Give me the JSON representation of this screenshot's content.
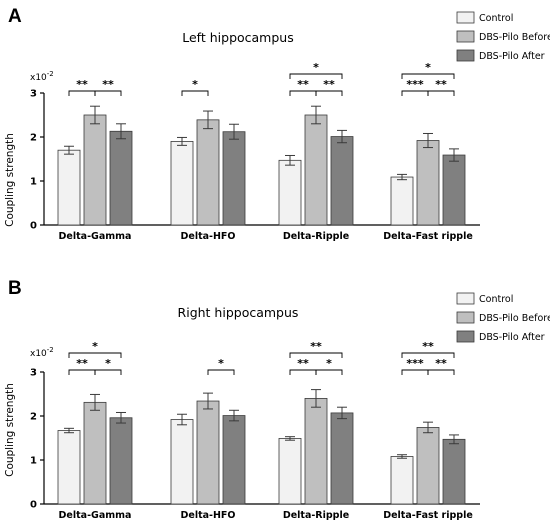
{
  "colors": {
    "control": "#f2f2f2",
    "before": "#bfbfbf",
    "after": "#808080",
    "stroke": "#3a3a3a"
  },
  "chart_data": [
    {
      "type": "bar",
      "panel": "A",
      "title": "Left hippocampus",
      "ylabel": "Coupling strength",
      "yscale_note": "x10",
      "yscale_exp": "-2",
      "ylim": [
        0,
        3
      ],
      "yticks": [
        "0",
        "1",
        "2",
        "3"
      ],
      "categories": [
        "Delta-Gamma",
        "Delta-HFO",
        "Delta-Ripple",
        "Delta-Fast ripple"
      ],
      "legend_position": "top-right",
      "series": [
        {
          "name": "Control",
          "values": [
            1.7,
            1.9,
            1.47,
            1.09
          ],
          "errors": [
            0.09,
            0.09,
            0.11,
            0.06
          ]
        },
        {
          "name": "DBS-Pilo Before",
          "values": [
            2.5,
            2.39,
            2.5,
            1.92
          ],
          "errors": [
            0.2,
            0.2,
            0.2,
            0.16
          ]
        },
        {
          "name": "DBS-Pilo After",
          "values": [
            2.13,
            2.12,
            2.01,
            1.59
          ],
          "errors": [
            0.17,
            0.17,
            0.14,
            0.14
          ]
        }
      ],
      "significance": [
        {
          "category": 0,
          "from": 0,
          "to": 1,
          "level": 0,
          "label": "**"
        },
        {
          "category": 0,
          "from": 1,
          "to": 2,
          "level": 0,
          "label": "**"
        },
        {
          "category": 1,
          "from": 0,
          "to": 1,
          "level": 0,
          "label": "*"
        },
        {
          "category": 2,
          "from": 0,
          "to": 1,
          "level": 0,
          "label": "**"
        },
        {
          "category": 2,
          "from": 1,
          "to": 2,
          "level": 0,
          "label": "**"
        },
        {
          "category": 2,
          "from": 0,
          "to": 2,
          "level": 1,
          "label": "*"
        },
        {
          "category": 3,
          "from": 0,
          "to": 1,
          "level": 0,
          "label": "***"
        },
        {
          "category": 3,
          "from": 1,
          "to": 2,
          "level": 0,
          "label": "**"
        },
        {
          "category": 3,
          "from": 0,
          "to": 2,
          "level": 1,
          "label": "*"
        }
      ]
    },
    {
      "type": "bar",
      "panel": "B",
      "title": "Right hippocampus",
      "ylabel": "Coupling strength",
      "yscale_note": "x10",
      "yscale_exp": "-2",
      "ylim": [
        0,
        3
      ],
      "yticks": [
        "0",
        "1",
        "2",
        "3"
      ],
      "categories": [
        "Delta-Gamma",
        "Delta-HFO",
        "Delta-Ripple",
        "Delta-Fast ripple"
      ],
      "legend_position": "top-right",
      "series": [
        {
          "name": "Control",
          "values": [
            1.67,
            1.92,
            1.49,
            1.08
          ],
          "errors": [
            0.05,
            0.12,
            0.04,
            0.04
          ]
        },
        {
          "name": "DBS-Pilo Before",
          "values": [
            2.31,
            2.34,
            2.4,
            1.74
          ],
          "errors": [
            0.18,
            0.18,
            0.2,
            0.12
          ]
        },
        {
          "name": "DBS-Pilo After",
          "values": [
            1.96,
            2.01,
            2.07,
            1.47
          ],
          "errors": [
            0.12,
            0.12,
            0.13,
            0.1
          ]
        }
      ],
      "significance": [
        {
          "category": 0,
          "from": 0,
          "to": 1,
          "level": 0,
          "label": "**"
        },
        {
          "category": 0,
          "from": 1,
          "to": 2,
          "level": 0,
          "label": "*"
        },
        {
          "category": 0,
          "from": 0,
          "to": 2,
          "level": 1,
          "label": "*"
        },
        {
          "category": 1,
          "from": 1,
          "to": 2,
          "level": 0,
          "label": "*"
        },
        {
          "category": 2,
          "from": 0,
          "to": 1,
          "level": 0,
          "label": "**"
        },
        {
          "category": 2,
          "from": 1,
          "to": 2,
          "level": 0,
          "label": "*"
        },
        {
          "category": 2,
          "from": 0,
          "to": 2,
          "level": 1,
          "label": "**"
        },
        {
          "category": 3,
          "from": 0,
          "to": 1,
          "level": 0,
          "label": "***"
        },
        {
          "category": 3,
          "from": 1,
          "to": 2,
          "level": 0,
          "label": "**"
        },
        {
          "category": 3,
          "from": 0,
          "to": 2,
          "level": 1,
          "label": "**"
        }
      ]
    }
  ]
}
